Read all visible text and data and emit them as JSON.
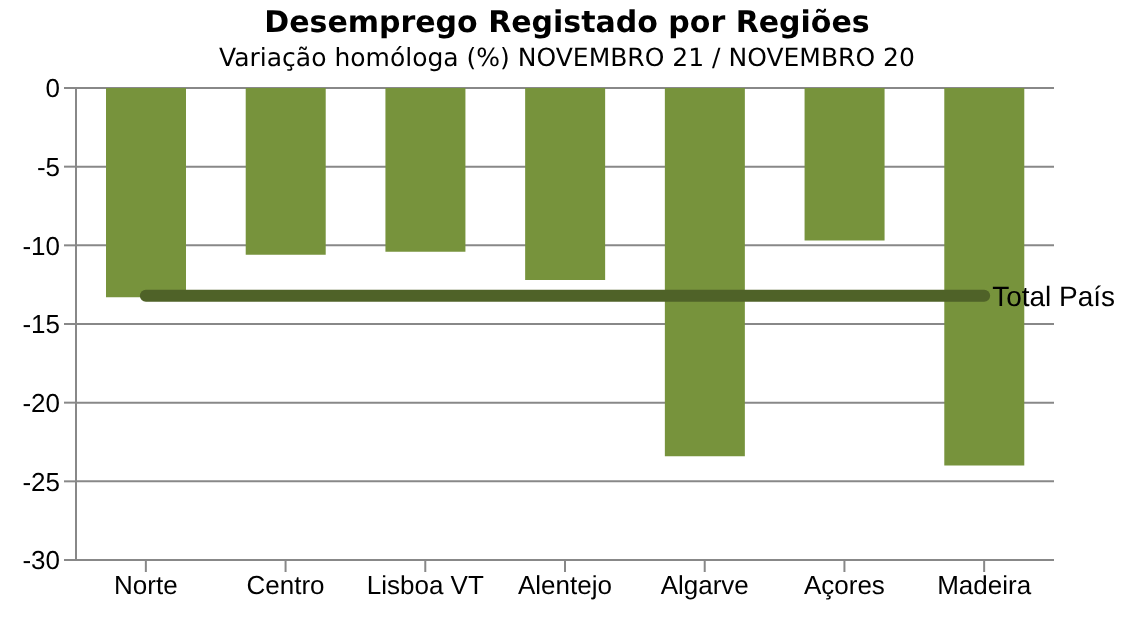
{
  "chart_data": {
    "type": "bar",
    "title": "Desemprego Registado por Regiões",
    "subtitle": "Variação homóloga (%) NOVEMBRO 21 / NOVEMBRO  20",
    "categories": [
      "Norte",
      "Centro",
      "Lisboa VT",
      "Alentejo",
      "Algarve",
      "Açores",
      "Madeira"
    ],
    "series": [
      {
        "color": "#77933c",
        "values": [
          -13.3,
          -10.6,
          -10.4,
          -12.2,
          -23.4,
          -9.7,
          -24.0
        ]
      },
      {
        "type": "line",
        "name": "Total País",
        "color": "#4f6228",
        "values": [
          -13.2,
          -13.2,
          -13.2,
          -13.2,
          -13.2,
          -13.2,
          -13.2
        ]
      }
    ],
    "ylim": [
      -30,
      0
    ],
    "yticks": [
      -30,
      -25,
      -20,
      -15,
      -10,
      -5,
      0
    ],
    "grid": "y",
    "legend": false
  }
}
